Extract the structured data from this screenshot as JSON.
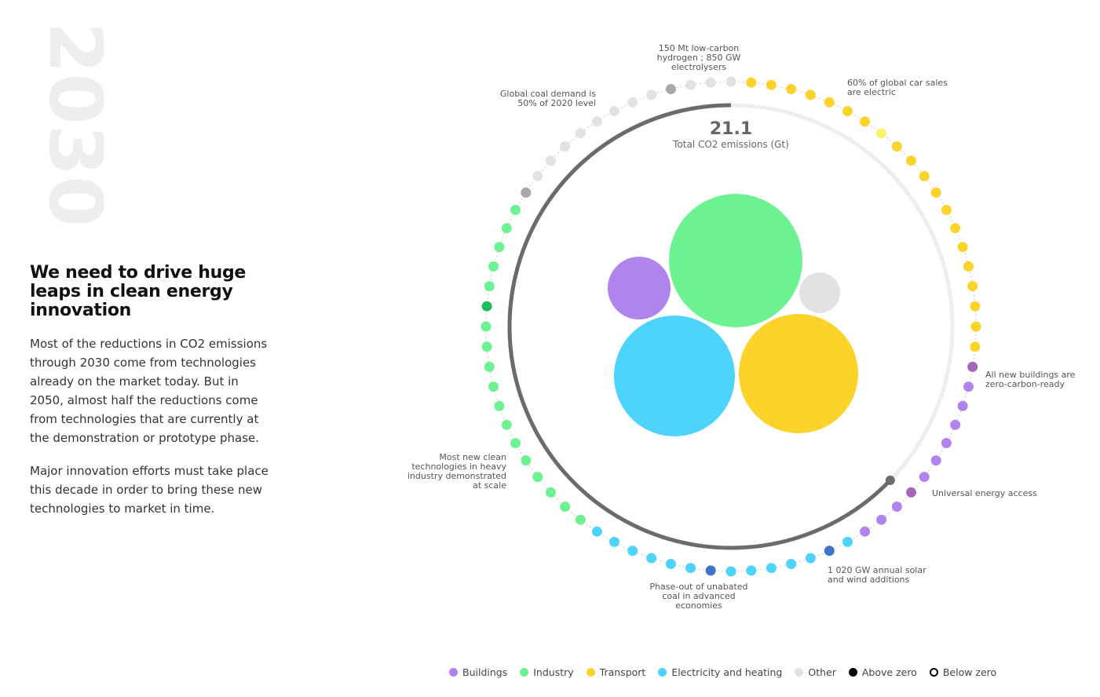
{
  "year": "2030",
  "headline": "We need to drive huge leaps in clean energy innovation",
  "paragraphs": [
    "Most of the reductions in CO2 emissions through 2030 come from technologies already on the market today. But in 2050, almost half the reductions come from technologies that are currently at the demonstration or prototype phase.",
    "Major innovation efforts must take place this decade in order to bring these new technologies to market in time."
  ],
  "chart_data": {
    "type": "radial-timeline",
    "total": {
      "value": "21.1",
      "label": "Total CO2 emissions (Gt)"
    },
    "milestones": [
      {
        "lines": [
          "150 Mt low-carbon",
          "hydrogen ; 850 GW",
          "electrolysers"
        ],
        "sector": "Other"
      },
      {
        "lines": [
          "60% of global car sales",
          "are electric"
        ],
        "sector": "Transport"
      },
      {
        "lines": [
          "All new buildings are",
          "zero-carbon-ready"
        ],
        "sector": "Buildings"
      },
      {
        "lines": [
          "Universal energy access"
        ],
        "sector": "Buildings"
      },
      {
        "lines": [
          "1 020 GW annual solar",
          "and wind additions"
        ],
        "sector": "Electricity and heating"
      },
      {
        "lines": [
          "Phase-out of unabated",
          "coal in advanced",
          "economies"
        ],
        "sector": "Electricity and heating"
      },
      {
        "lines": [
          "Most new clean",
          "technologies in heavy",
          "industry demonstrated",
          "at scale"
        ],
        "sector": "Industry"
      },
      {
        "lines": [
          "Global coal demand is",
          "50% of 2020 level"
        ],
        "sector": "Other"
      }
    ],
    "bubbles": [
      {
        "sector": "Industry"
      },
      {
        "sector": "Buildings"
      },
      {
        "sector": "Other"
      },
      {
        "sector": "Electricity and heating"
      },
      {
        "sector": "Transport"
      }
    ],
    "legend": [
      {
        "name": "Buildings",
        "color": "#b084ec",
        "style": "filled"
      },
      {
        "name": "Industry",
        "color": "#6df292",
        "style": "filled"
      },
      {
        "name": "Transport",
        "color": "#fcd32a",
        "style": "filled"
      },
      {
        "name": "Electricity and heating",
        "color": "#4dd3fc",
        "style": "filled"
      },
      {
        "name": "Other",
        "color": "#e2e2e2",
        "style": "filled"
      },
      {
        "name": "Above zero",
        "color": "#000000",
        "style": "filled"
      },
      {
        "name": "Below zero",
        "color": "#000000",
        "style": "outline"
      }
    ],
    "colors": {
      "buildings": "#b084ec",
      "buildings_milestone": "#a467b8",
      "industry": "#6df292",
      "industry_milestone": "#1dbe5a",
      "transport": "#fcd32a",
      "transport_milestone": "#fbf26a",
      "electricity": "#4dd3fc",
      "electricity_milestone": "#3f74c8",
      "other": "#e2e2e2",
      "other_milestone": "#a8a8a8",
      "progress_arc": "#6b6b6b",
      "remaining_arc": "#eeeeee"
    }
  }
}
